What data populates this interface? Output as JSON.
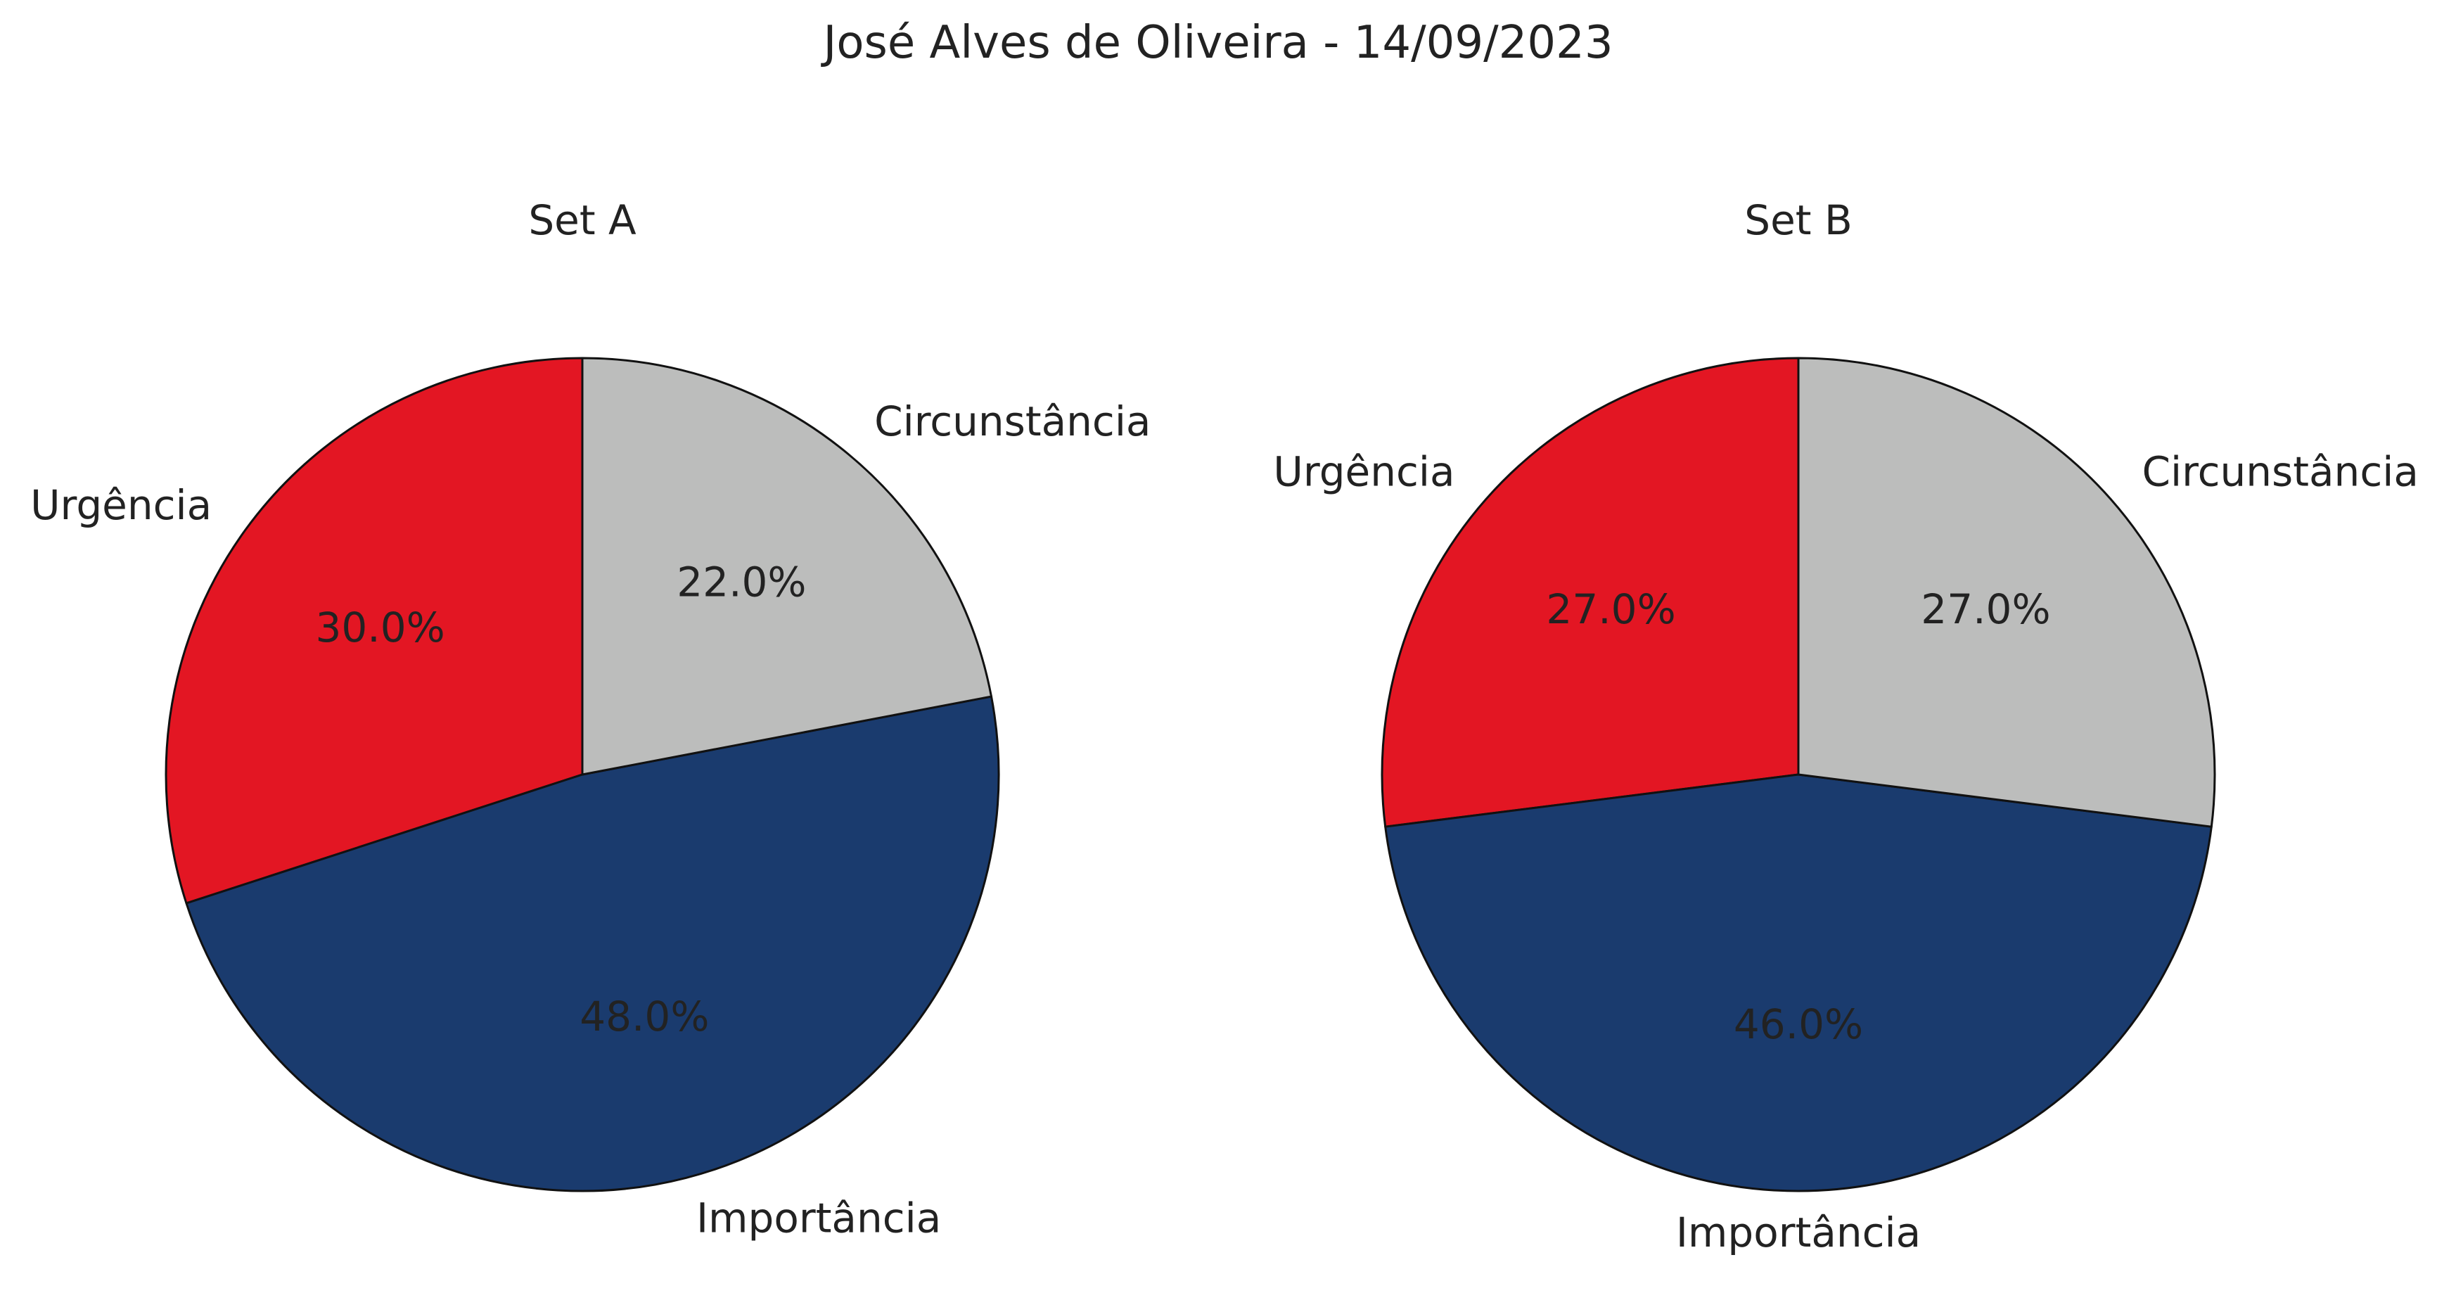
{
  "figure": {
    "title": "José Alves de Oliveira - 14/09/2023"
  },
  "colors": {
    "Urgência": "#E31623",
    "Circunstância": "#BCBDBC",
    "Importância": "#1A3B6E",
    "edge": "#111111",
    "text": "#222222",
    "background": "#ffffff"
  },
  "chart_data": [
    {
      "type": "pie",
      "title": "Set A",
      "start_angle": "top (90°), counter-clockwise",
      "slices": [
        {
          "label": "Urgência",
          "value": 30.0,
          "display": "30.0%"
        },
        {
          "label": "Importância",
          "value": 48.0,
          "display": "48.0%"
        },
        {
          "label": "Circunstância",
          "value": 22.0,
          "display": "22.0%"
        }
      ]
    },
    {
      "type": "pie",
      "title": "Set B",
      "start_angle": "top (90°), counter-clockwise",
      "slices": [
        {
          "label": "Urgência",
          "value": 27.0,
          "display": "27.0%"
        },
        {
          "label": "Importância",
          "value": 46.0,
          "display": "46.0%"
        },
        {
          "label": "Circunstância",
          "value": 27.0,
          "display": "27.0%"
        }
      ]
    }
  ]
}
